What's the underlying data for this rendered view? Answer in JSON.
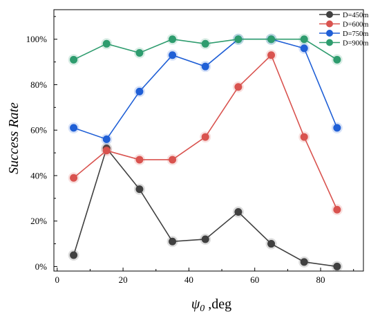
{
  "chart_data": {
    "type": "line",
    "title": "",
    "xlabel": {
      "symbol": "ψ",
      "subscript": "0",
      "suffix": " ,deg"
    },
    "ylabel": "Success Rate",
    "x": [
      5,
      15,
      25,
      35,
      45,
      55,
      65,
      75,
      85
    ],
    "xlim": [
      -1,
      93
    ],
    "ylim": [
      -2,
      113
    ],
    "xticks": [
      0,
      20,
      40,
      60,
      80
    ],
    "xtick_labels": [
      "0",
      "20",
      "40",
      "60",
      "80"
    ],
    "yticks": [
      0,
      20,
      40,
      60,
      80,
      100
    ],
    "ytick_labels": [
      "0%",
      "20%",
      "40%",
      "60%",
      "80%",
      "100%"
    ],
    "grid": false,
    "legend_position": "top-right",
    "series": [
      {
        "name": "D=450m",
        "color": "#404040",
        "values": [
          5,
          52,
          34,
          11,
          12,
          24,
          10,
          2,
          0
        ]
      },
      {
        "name": "D=600m",
        "color": "#d9534f",
        "values": [
          39,
          51,
          47,
          47,
          57,
          79,
          93,
          57,
          25
        ]
      },
      {
        "name": "D=750m",
        "color": "#1f5fd6",
        "values": [
          61,
          56,
          77,
          93,
          88,
          100,
          100,
          96,
          61
        ]
      },
      {
        "name": "D=900m",
        "color": "#2e9c6e",
        "values": [
          91,
          98,
          94,
          100,
          98,
          100,
          100,
          100,
          91
        ]
      }
    ]
  }
}
